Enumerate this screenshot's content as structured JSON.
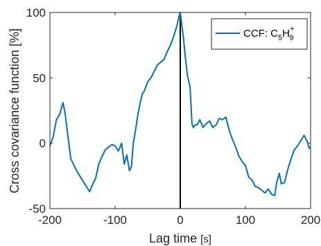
{
  "chart_data": {
    "type": "line",
    "title": "",
    "xlabel": "Lag time",
    "xlabel_unit": "[s]",
    "ylabel": "Cross covariance function [%]",
    "xlim": [
      -200,
      200
    ],
    "ylim": [
      -50,
      100
    ],
    "xticks": [
      -200,
      -100,
      0,
      100,
      200
    ],
    "yticks": [
      -50,
      0,
      50,
      100
    ],
    "grid": false,
    "legend_position": "top-right",
    "vline": {
      "x": 0,
      "color": "#000000"
    },
    "series": [
      {
        "legend_parts": {
          "prefix": "CCF: C",
          "sub1": "5",
          "mid": "H",
          "sup": "+",
          "sub2": "9"
        },
        "color": "#0072BD",
        "x": [
          -200,
          -195,
          -190,
          -185,
          -180,
          -177,
          -172,
          -168,
          -163,
          -158,
          -153,
          -148,
          -143,
          -139,
          -135,
          -130,
          -125,
          -120,
          -115,
          -110,
          -105,
          -100,
          -95,
          -90,
          -86,
          -82,
          -78,
          -75,
          -72,
          -68,
          -65,
          -61,
          -58,
          -55,
          -50,
          -45,
          -40,
          -35,
          -30,
          -25,
          -20,
          -15,
          -10,
          -5,
          -2,
          0,
          1,
          3,
          5,
          8,
          11,
          15,
          18,
          20,
          23,
          26,
          30,
          35,
          40,
          45,
          50,
          55,
          60,
          65,
          70,
          75,
          80,
          85,
          90,
          95,
          100,
          105,
          110,
          115,
          120,
          125,
          130,
          135,
          140,
          145,
          148,
          152,
          155,
          160,
          165,
          170,
          175,
          180,
          185,
          190,
          195,
          198,
          200
        ],
        "y": [
          -2,
          5,
          18,
          22,
          31,
          24,
          4,
          -12,
          -17,
          -22,
          -26,
          -30,
          -34,
          -37,
          -32,
          -27,
          -16,
          -10,
          -5,
          -3,
          -1,
          -2,
          -6,
          0,
          -16,
          -9,
          -21,
          -18,
          0,
          12,
          22,
          32,
          38,
          40,
          47,
          50,
          55,
          60,
          62,
          64,
          70,
          75,
          82,
          90,
          97,
          100,
          96,
          88,
          80,
          65,
          52,
          43,
          15,
          12,
          14,
          14,
          18,
          12,
          15,
          17,
          12,
          14,
          19,
          18,
          20,
          10,
          3,
          -3,
          -10,
          -14,
          -17,
          -26,
          -28,
          -33,
          -34,
          -36,
          -38,
          -35,
          -39,
          -40,
          -30,
          -23,
          -31,
          -30,
          -20,
          -12,
          -5,
          -2,
          2,
          6,
          1,
          -4,
          -3
        ]
      }
    ]
  }
}
